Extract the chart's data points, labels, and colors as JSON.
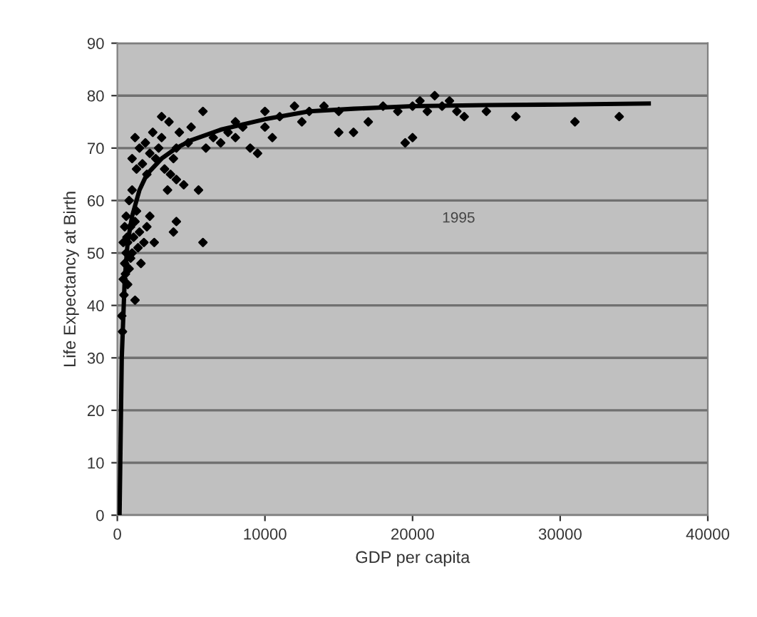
{
  "chart_data": {
    "type": "scatter",
    "xlabel": "GDP per capita",
    "ylabel": "Life Expectancy at Birth",
    "annotations": [
      "1995"
    ],
    "xlim": [
      0,
      40000
    ],
    "ylim": [
      0,
      90
    ],
    "xticks": [
      0,
      10000,
      20000,
      30000,
      40000
    ],
    "yticks": [
      0,
      10,
      20,
      30,
      40,
      50,
      60,
      70,
      80,
      90
    ],
    "grid": "y",
    "marker": "diamond",
    "legend": false,
    "series": [
      {
        "color": "#000000",
        "x": [
          300,
          350,
          400,
          400,
          450,
          500,
          500,
          550,
          600,
          600,
          650,
          700,
          700,
          800,
          800,
          900,
          900,
          1000,
          1000,
          1000,
          1100,
          1200,
          1200,
          1200,
          1300,
          1300,
          1400,
          1500,
          1500,
          1600,
          1700,
          1800,
          1900,
          2000,
          2000,
          2200,
          2200,
          2400,
          2500,
          2600,
          2800,
          3000,
          3000,
          3200,
          3400,
          3500,
          3600,
          3800,
          3800,
          4000,
          4000,
          4000,
          4200,
          4500,
          4800,
          5000,
          5500,
          5800,
          5800,
          6000,
          6500,
          7000,
          7500,
          8000,
          8000,
          8500,
          9000,
          9500,
          10000,
          10000,
          10500,
          11000,
          12000,
          12500,
          13000,
          14000,
          15000,
          15000,
          16000,
          17000,
          18000,
          19000,
          19500,
          20000,
          20000,
          20500,
          21000,
          21500,
          22000,
          22500,
          23000,
          23500,
          25000,
          27000,
          31000,
          34000
        ],
        "values": [
          38,
          35,
          45,
          52,
          42,
          48,
          55,
          46,
          50,
          57,
          53,
          52,
          44,
          47,
          60,
          55,
          49,
          50,
          62,
          68,
          53,
          41,
          56,
          72,
          58,
          66,
          51,
          54,
          70,
          48,
          67,
          52,
          71,
          55,
          65,
          57,
          69,
          73,
          52,
          68,
          70,
          72,
          76,
          66,
          62,
          75,
          65,
          68,
          54,
          70,
          64,
          56,
          73,
          63,
          71,
          74,
          62,
          77,
          52,
          70,
          72,
          71,
          73,
          72,
          75,
          74,
          70,
          69,
          74,
          77,
          72,
          76,
          78,
          75,
          77,
          78,
          77,
          73,
          73,
          75,
          78,
          77,
          71,
          78,
          72,
          79,
          77,
          80,
          78,
          79,
          77,
          76,
          77,
          76,
          75,
          76
        ]
      },
      {
        "type": "line",
        "color": "#000000",
        "marker": "none",
        "line_style": "solid",
        "x": [
          150,
          200,
          300,
          500,
          700,
          1000,
          1500,
          2000,
          3000,
          4000,
          5000,
          7000,
          10000,
          13000,
          16000,
          20000,
          25000,
          30000,
          36000
        ],
        "values": [
          0,
          10,
          30,
          45,
          52,
          57,
          62,
          65,
          68,
          70,
          71.5,
          73.5,
          75.5,
          77,
          77.5,
          78,
          78.2,
          78.3,
          78.5
        ]
      }
    ]
  }
}
